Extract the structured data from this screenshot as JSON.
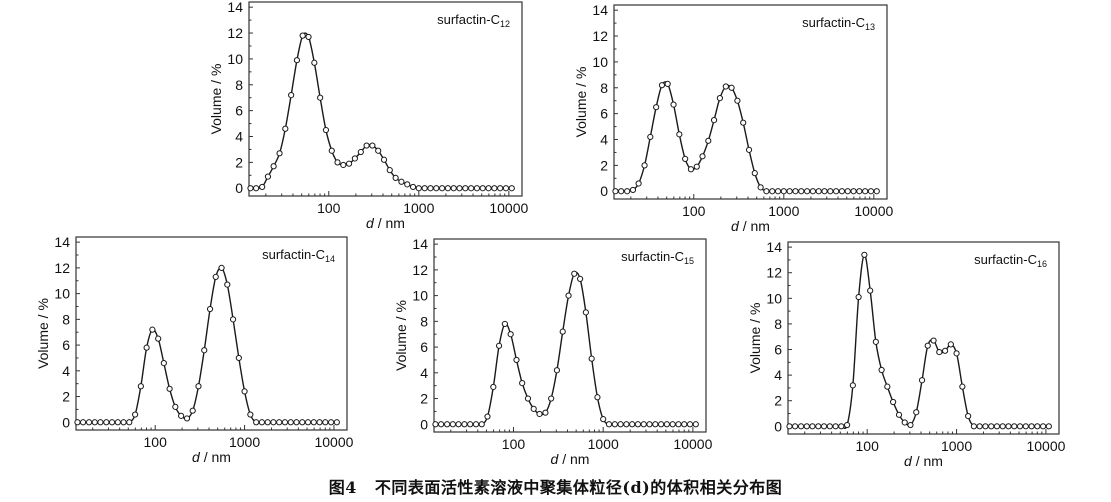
{
  "figure_caption": {
    "figure_number": "图4",
    "text": "不同表面活性素溶液中聚集体粒径(d)的体积相关分布图"
  },
  "chart_data": [
    {
      "type": "line",
      "title": "surfactin-C12",
      "xlabel": "d / nm",
      "ylabel": "Volume / %",
      "xscale": "log",
      "xlim": [
        13,
        14000
      ],
      "ylim": [
        -0.6,
        14.4
      ],
      "xticks": [
        100,
        1000,
        10000
      ],
      "yticks": [
        0,
        2,
        4,
        6,
        8,
        10,
        12,
        14
      ],
      "legend_position": "top-right",
      "grid": false,
      "marker": "open-circle",
      "x": [
        13.5,
        15.6,
        18.2,
        21.1,
        24.4,
        28.4,
        32.9,
        38.2,
        44.3,
        51.3,
        59.6,
        69.1,
        80.2,
        93.0,
        108,
        125,
        145,
        168,
        195,
        227,
        263,
        305,
        354,
        411,
        476,
        553,
        641,
        744,
        863,
        1000,
        1161,
        1348,
        1563,
        1814,
        2104,
        2441,
        2831,
        3285,
        3811,
        4421,
        5129,
        5950,
        6902,
        8008,
        9290,
        10777
      ],
      "y": [
        0,
        0,
        0.1,
        0.9,
        1.7,
        2.7,
        4.6,
        7.2,
        9.9,
        11.8,
        11.7,
        9.7,
        7.0,
        4.5,
        2.9,
        2.0,
        1.8,
        1.9,
        2.3,
        2.8,
        3.3,
        3.3,
        2.9,
        2.2,
        1.4,
        0.8,
        0.5,
        0.3,
        0.1,
        0,
        0,
        0,
        0,
        0,
        0,
        0,
        0,
        0,
        0,
        0,
        0,
        0,
        0,
        0,
        0,
        0
      ]
    },
    {
      "type": "line",
      "title": "surfactin-C13",
      "xlabel": "d / nm",
      "ylabel": "Volume / %",
      "xscale": "log",
      "xlim": [
        13,
        14000
      ],
      "ylim": [
        -0.6,
        14.4
      ],
      "xticks": [
        100,
        1000,
        10000
      ],
      "yticks": [
        0,
        2,
        4,
        6,
        8,
        10,
        12,
        14
      ],
      "legend_position": "top-right",
      "grid": false,
      "marker": "open-circle",
      "x": [
        13.5,
        15.6,
        18.2,
        21.1,
        24.4,
        28.4,
        32.9,
        38.2,
        44.3,
        51.3,
        59.6,
        69.1,
        80.2,
        93.0,
        108,
        125,
        145,
        168,
        195,
        227,
        263,
        305,
        354,
        411,
        476,
        553,
        641,
        744,
        863,
        1000,
        1161,
        1348,
        1563,
        1814,
        2104,
        2441,
        2831,
        3285,
        3811,
        4421,
        5129,
        5950,
        6902,
        8008,
        9290,
        10777
      ],
      "y": [
        0,
        0,
        0,
        0.1,
        0.6,
        2.0,
        4.2,
        6.5,
        8.2,
        8.3,
        6.7,
        4.4,
        2.5,
        1.7,
        1.9,
        2.7,
        3.9,
        5.5,
        7.2,
        8.1,
        8.0,
        7.0,
        5.3,
        3.2,
        1.4,
        0.3,
        0,
        0,
        0,
        0,
        0,
        0,
        0,
        0,
        0,
        0,
        0,
        0,
        0,
        0,
        0,
        0,
        0,
        0,
        0,
        0
      ]
    },
    {
      "type": "line",
      "title": "surfactin-C14",
      "xlabel": "d / nm",
      "ylabel": "Volume / %",
      "xscale": "log",
      "xlim": [
        13,
        14000
      ],
      "ylim": [
        -0.6,
        14.4
      ],
      "xticks": [
        100,
        1000,
        10000
      ],
      "yticks": [
        0,
        2,
        4,
        6,
        8,
        10,
        12,
        14
      ],
      "legend_position": "top-right",
      "grid": false,
      "marker": "open-circle",
      "x": [
        13.5,
        15.6,
        18.2,
        21.1,
        24.4,
        28.4,
        32.9,
        38.2,
        44.3,
        51.3,
        59.6,
        69.1,
        80.2,
        93.0,
        108,
        125,
        145,
        168,
        195,
        227,
        263,
        305,
        354,
        411,
        476,
        553,
        641,
        744,
        863,
        1000,
        1161,
        1348,
        1563,
        1814,
        2104,
        2441,
        2831,
        3285,
        3811,
        4421,
        5129,
        5950,
        6902,
        8008,
        9290,
        10777
      ],
      "y": [
        0,
        0,
        0,
        0,
        0,
        0,
        0,
        0,
        0,
        0,
        0.6,
        2.8,
        5.8,
        7.2,
        6.5,
        4.6,
        2.6,
        1.2,
        0.5,
        0.3,
        0.9,
        2.8,
        5.6,
        8.8,
        11.3,
        12.0,
        10.7,
        8.0,
        5.0,
        2.4,
        0.6,
        0,
        0,
        0,
        0,
        0,
        0,
        0,
        0,
        0,
        0,
        0,
        0,
        0,
        0,
        0
      ]
    },
    {
      "type": "line",
      "title": "surfactin-C15",
      "xlabel": "d / nm",
      "ylabel": "Volume / %",
      "xscale": "log",
      "xlim": [
        13,
        14000
      ],
      "ylim": [
        -0.6,
        14.4
      ],
      "xticks": [
        100,
        1000,
        10000
      ],
      "yticks": [
        0,
        2,
        4,
        6,
        8,
        10,
        12,
        14
      ],
      "legend_position": "top-right",
      "grid": false,
      "marker": "open-circle",
      "x": [
        13.5,
        15.6,
        18.2,
        21.1,
        24.4,
        28.4,
        32.9,
        38.2,
        44.3,
        51.3,
        59.6,
        69.1,
        80.2,
        93.0,
        108,
        125,
        145,
        168,
        195,
        227,
        263,
        305,
        354,
        411,
        476,
        553,
        641,
        744,
        863,
        1000,
        1161,
        1348,
        1563,
        1814,
        2104,
        2441,
        2831,
        3285,
        3811,
        4421,
        5129,
        5950,
        6902,
        8008,
        9290,
        10777
      ],
      "y": [
        0,
        0,
        0,
        0,
        0,
        0,
        0,
        0,
        0,
        0.6,
        2.9,
        6.1,
        7.8,
        7.0,
        5.0,
        3.2,
        2.0,
        1.2,
        0.8,
        0.9,
        2.0,
        4.2,
        7.2,
        10.0,
        11.7,
        11.3,
        8.7,
        5.1,
        2.1,
        0.4,
        0,
        0,
        0,
        0,
        0,
        0,
        0,
        0,
        0,
        0,
        0,
        0,
        0,
        0,
        0,
        0
      ]
    },
    {
      "type": "line",
      "title": "surfactin-C16",
      "xlabel": "d / nm",
      "ylabel": "Volume / %",
      "xscale": "log",
      "xlim": [
        13,
        14000
      ],
      "ylim": [
        -0.6,
        14.4
      ],
      "xticks": [
        100,
        1000,
        10000
      ],
      "yticks": [
        0,
        2,
        4,
        6,
        8,
        10,
        12,
        14
      ],
      "legend_position": "top-right",
      "grid": false,
      "marker": "open-circle",
      "x": [
        13.5,
        15.6,
        18.2,
        21.1,
        24.4,
        28.4,
        32.9,
        38.2,
        44.3,
        51.3,
        59.6,
        69.1,
        80.2,
        93.0,
        108,
        125,
        145,
        168,
        195,
        227,
        263,
        305,
        354,
        411,
        476,
        553,
        641,
        744,
        863,
        1000,
        1161,
        1348,
        1563,
        1814,
        2104,
        2441,
        2831,
        3285,
        3811,
        4421,
        5129,
        5950,
        6902,
        8008,
        9290,
        10777
      ],
      "y": [
        0,
        0,
        0,
        0,
        0,
        0,
        0,
        0,
        0,
        0,
        0.1,
        3.2,
        10.1,
        13.4,
        10.6,
        6.6,
        4.4,
        3.1,
        1.9,
        0.9,
        0.3,
        0.1,
        1.1,
        3.6,
        6.3,
        6.7,
        5.8,
        5.9,
        6.4,
        5.7,
        3.1,
        0.8,
        0,
        0,
        0,
        0,
        0,
        0,
        0,
        0,
        0,
        0,
        0,
        0,
        0,
        0
      ]
    }
  ],
  "colors": {
    "line": "#1a1a1a",
    "marker_fill": "#ffffff",
    "axis": "#333333"
  }
}
